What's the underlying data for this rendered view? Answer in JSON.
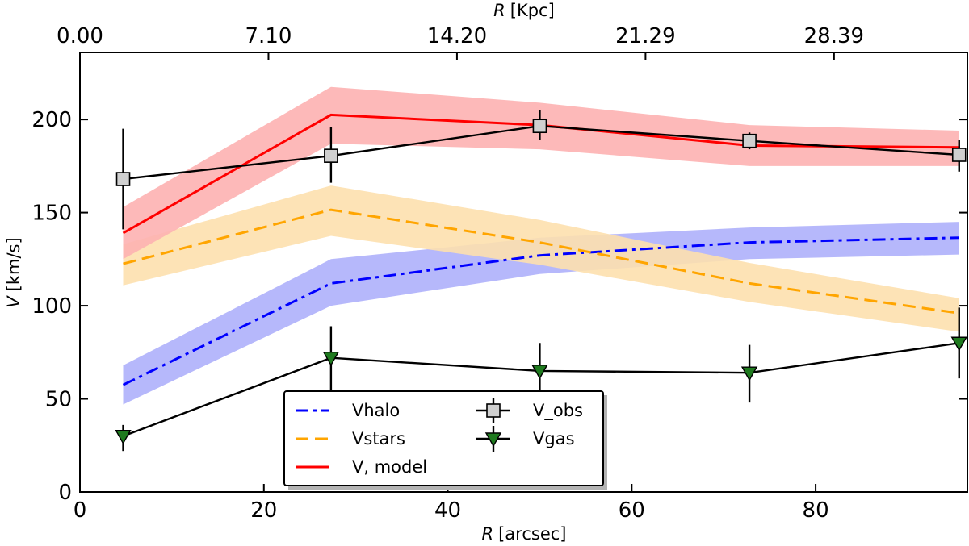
{
  "chart_data": {
    "type": "line",
    "title": "",
    "xlabel": {
      "var": "R",
      "unit": "[arcsec]"
    },
    "ylabel": {
      "var": "V",
      "unit": "[km/s]"
    },
    "x2label": {
      "var": "R",
      "unit": "[Kpc]"
    },
    "xlim": [
      0,
      96.5
    ],
    "ylim": [
      0,
      236
    ],
    "x_ticks": [
      0,
      20,
      40,
      60,
      80
    ],
    "y_ticks": [
      0,
      50,
      100,
      150,
      200
    ],
    "x2_ticks": [
      {
        "label": "0.00",
        "x": 0
      },
      {
        "label": "7.10",
        "x": 20.5
      },
      {
        "label": "14.20",
        "x": 41.0
      },
      {
        "label": "21.29",
        "x": 61.5
      },
      {
        "label": "28.39",
        "x": 82.0
      }
    ],
    "grid": false,
    "legend_position": "bottom-center",
    "x": [
      4.7,
      27.3,
      50.0,
      72.8,
      95.6
    ],
    "series": [
      {
        "name": "Vhalo",
        "style": "dashdot",
        "color": "#0000ff",
        "band_color": "#aeb0fb",
        "values": [
          57.5,
          112,
          127,
          134,
          136.5
        ],
        "band_low": [
          47,
          100,
          117,
          125,
          127.5
        ],
        "band_high": [
          68,
          125,
          136.5,
          142,
          145
        ]
      },
      {
        "name": "Vstars",
        "style": "dashed",
        "color": "#ffa500",
        "band_color": "#fde0ae",
        "values": [
          122.5,
          151.5,
          134,
          112,
          96
        ],
        "band_low": [
          111,
          137.5,
          122,
          102,
          86
        ],
        "band_high": [
          133,
          164.5,
          146,
          123,
          104
        ]
      },
      {
        "name": "V, model",
        "style": "solid",
        "color": "#ff0000",
        "band_color": "#fdb1b1",
        "values": [
          139,
          202.5,
          197,
          186,
          185
        ],
        "band_low": [
          125,
          187,
          184,
          175,
          175
        ],
        "band_high": [
          153,
          217.5,
          209,
          197,
          194
        ]
      },
      {
        "name": "V_obs",
        "style": "errorbar",
        "marker": "square",
        "color": "#000000",
        "marker_color": "#d0d0d0",
        "values": [
          168,
          180.5,
          196.5,
          188.5,
          181
        ],
        "err_low": [
          141,
          166,
          189,
          184,
          172
        ],
        "err_high": [
          195,
          196,
          205,
          193,
          189
        ]
      },
      {
        "name": "Vgas",
        "style": "errorbar",
        "marker": "triangle-down",
        "color": "#000000",
        "marker_color": "#1e7a1e",
        "values": [
          30,
          72,
          65,
          64,
          80
        ],
        "err_low": [
          22,
          55,
          48,
          48,
          61
        ],
        "err_high": [
          36,
          89,
          80,
          79,
          99
        ]
      }
    ]
  }
}
